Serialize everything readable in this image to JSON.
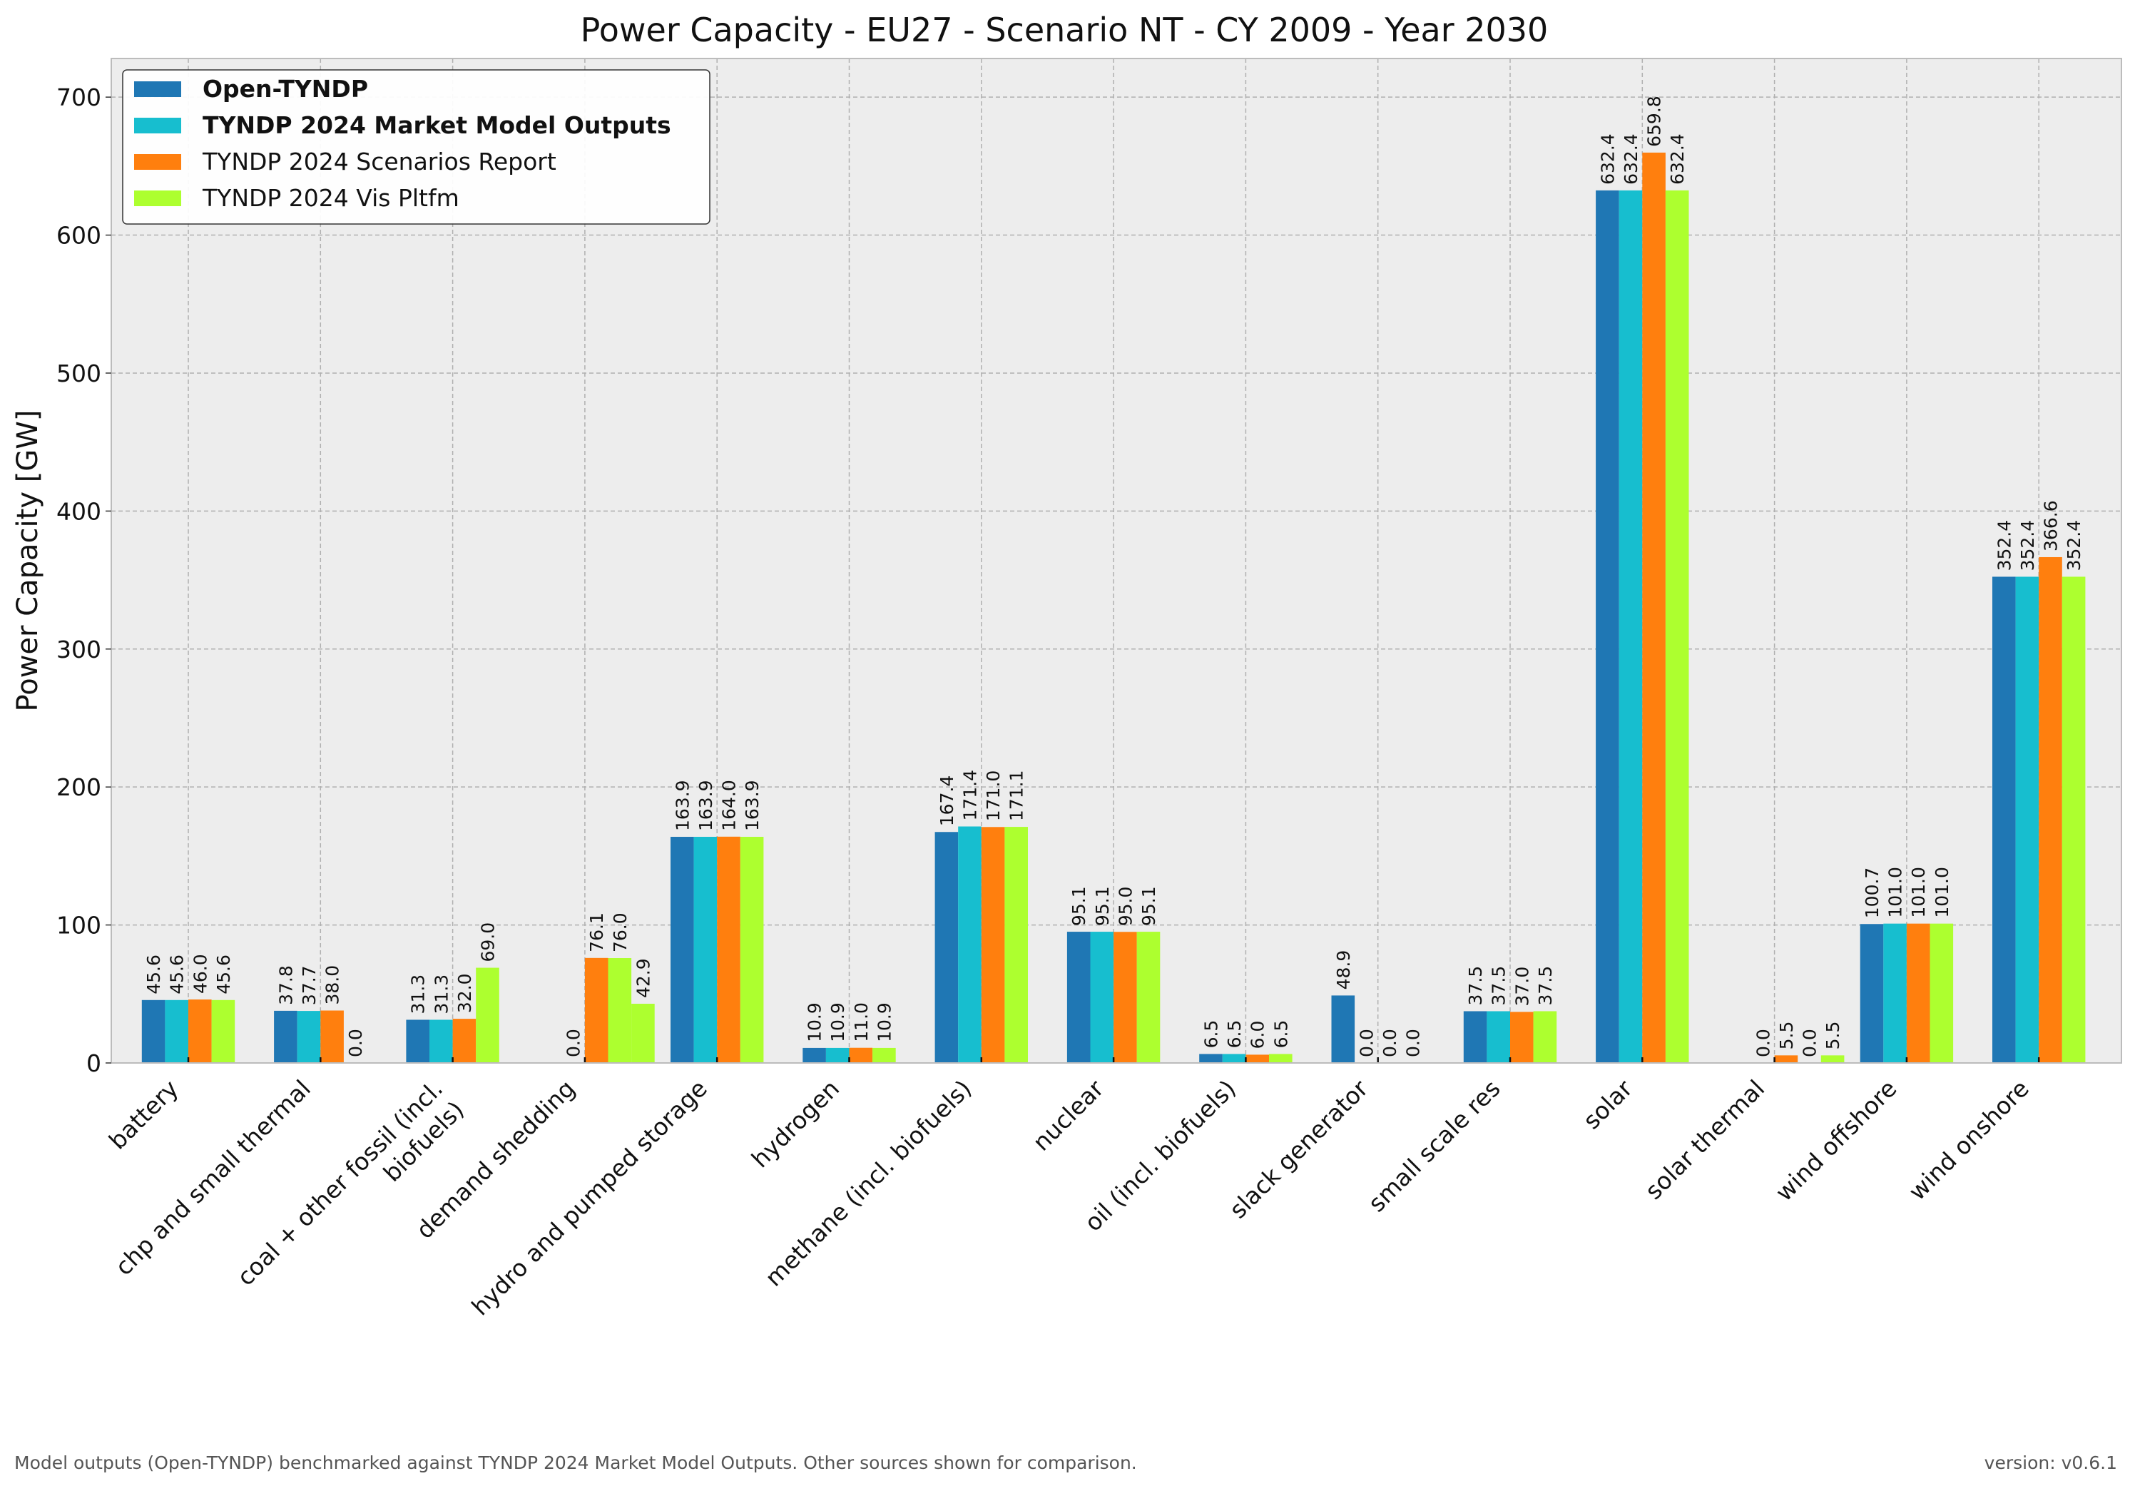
{
  "chart_data": {
    "type": "bar",
    "title": "Power Capacity - EU27 - Scenario NT - CY 2009 - Year 2030",
    "xlabel": "",
    "ylabel": "Power Capacity [GW]",
    "ylim": [
      0,
      728
    ],
    "yticks": [
      "0",
      "100",
      "200",
      "300",
      "400",
      "500",
      "600",
      "700"
    ],
    "grid": true,
    "legend_position": "top-left",
    "categories": [
      "battery",
      "chp and small thermal",
      "coal + other fossil (incl. biofuels)",
      "demand shedding",
      "hydro and pumped storage",
      "hydrogen",
      "methane (incl. biofuels)",
      "nuclear",
      "oil (incl. biofuels)",
      "slack generator",
      "small scale res",
      "solar",
      "solar thermal",
      "wind offshore",
      "wind onshore"
    ],
    "tick_labels": [
      [
        "battery"
      ],
      [
        "chp and small thermal"
      ],
      [
        "coal + other fossil (incl.",
        "biofuels)"
      ],
      [
        "demand shedding"
      ],
      [
        "hydro and pumped storage"
      ],
      [
        "hydrogen"
      ],
      [
        "methane (incl. biofuels)"
      ],
      [
        "nuclear"
      ],
      [
        "oil (incl. biofuels)"
      ],
      [
        "slack generator"
      ],
      [
        "small scale res"
      ],
      [
        "solar"
      ],
      [
        "solar thermal"
      ],
      [
        "wind offshore"
      ],
      [
        "wind onshore"
      ]
    ],
    "series": [
      {
        "name": "Open-TYNDP",
        "color": "#1f77b4",
        "bold": true,
        "values": [
          45.6,
          37.8,
          31.3,
          null,
          163.9,
          10.9,
          167.4,
          95.1,
          6.5,
          48.9,
          37.5,
          632.4,
          null,
          100.7,
          352.4
        ],
        "labels": [
          "45.6",
          "37.8",
          "31.3",
          "",
          "163.9",
          "10.9",
          "167.4",
          "95.1",
          "6.5",
          "48.9",
          "37.5",
          "632.4",
          "",
          "100.7",
          "352.4"
        ]
      },
      {
        "name": "TYNDP 2024 Market Model Outputs",
        "color": "#17becf",
        "bold": true,
        "values": [
          45.6,
          37.7,
          31.3,
          0.0,
          163.9,
          10.9,
          171.4,
          95.1,
          6.5,
          0.0,
          37.5,
          632.4,
          0.0,
          101.0,
          352.4
        ],
        "labels": [
          "45.6",
          "37.7",
          "31.3",
          "0.0",
          "163.9",
          "10.9",
          "171.4",
          "95.1",
          "6.5",
          "0.0",
          "37.5",
          "632.4",
          "0.0",
          "101.0",
          "352.4"
        ]
      },
      {
        "name": "TYNDP 2024 Scenarios Report",
        "color": "#ff7f0e",
        "bold": false,
        "values": [
          46.0,
          38.0,
          32.0,
          76.1,
          164.0,
          11.0,
          171.0,
          95.0,
          6.0,
          0.0,
          37.0,
          659.8,
          5.5,
          101.0,
          366.6
        ],
        "labels": [
          "46.0",
          "38.0",
          "32.0",
          "76.1",
          "164.0",
          "11.0",
          "171.0",
          "95.0",
          "6.0",
          "0.0",
          "37.0",
          "659.8",
          "5.5",
          "101.0",
          "366.6"
        ]
      },
      {
        "name": "TYNDP 2024 Vis Pltfm",
        "color": "#adff2f",
        "bold": false,
        "values": [
          45.6,
          0.0,
          69.0,
          76.0,
          163.9,
          10.9,
          171.1,
          95.1,
          6.5,
          0.0,
          37.5,
          632.4,
          0.0,
          101.0,
          352.4
        ],
        "labels": [
          "45.6",
          "0.0",
          "69.0",
          "76.0",
          "163.9",
          "10.9",
          "171.1",
          "95.1",
          "6.5",
          "0.0",
          "37.5",
          "632.4",
          "0.0",
          "101.0",
          "352.4"
        ]
      }
    ],
    "extra_bars": [
      {
        "category": "demand shedding",
        "value": 42.9,
        "color": "#adff2f",
        "label": "42.9"
      },
      {
        "category": "solar thermal",
        "value": 5.5,
        "color": "#adff2f",
        "label": "5.5"
      }
    ]
  },
  "footer": {
    "note": "Model outputs (Open-TYNDP) benchmarked against TYNDP 2024 Market Model Outputs. Other sources shown for comparison.",
    "version": "version: v0.6.1"
  },
  "colors": {
    "plot_background": "#ededed",
    "grid": "#b0b0b0",
    "axes_edge": "#bcbcbc"
  }
}
